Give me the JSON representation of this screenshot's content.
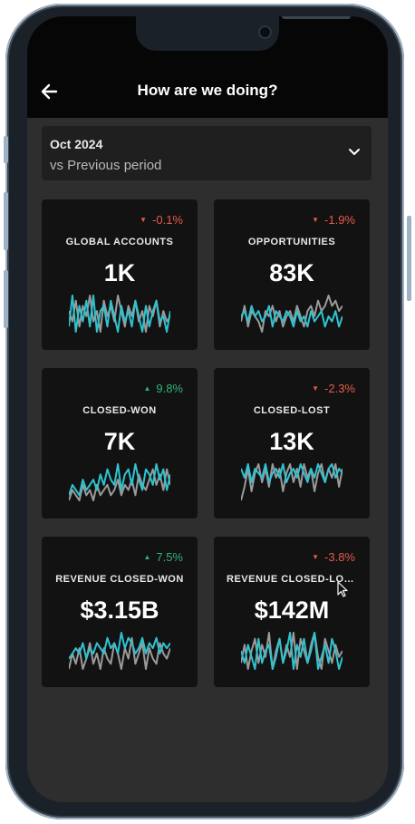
{
  "header": {
    "title": "How are we doing?",
    "back_icon": "arrow-left-icon"
  },
  "selector": {
    "period": "Oct 2024",
    "comparison": "vs Previous period",
    "icon": "chevron-down-icon"
  },
  "colors": {
    "primary_series": "#2fc3d0",
    "comparison_series": "#9a9a9a",
    "negative": "#e55b4d",
    "positive": "#2fb37a"
  },
  "cards": [
    {
      "label": "GLOBAL ACCOUNTS",
      "value": "1K",
      "delta": "-0.1%",
      "direction": "down",
      "trend_primary": [
        3,
        9,
        2,
        7,
        4,
        8,
        3,
        9,
        2,
        6,
        7,
        3,
        8,
        5,
        2,
        7,
        4,
        6,
        3,
        8,
        5,
        2,
        7,
        3,
        6,
        8,
        4,
        5,
        2,
        6
      ],
      "trend_compare": [
        6,
        4,
        8,
        3,
        7,
        5,
        9,
        4,
        6,
        2,
        8,
        5,
        7,
        4,
        9,
        6,
        3,
        7,
        5,
        8,
        4,
        6,
        2,
        7,
        5,
        8,
        3,
        6,
        4,
        5
      ]
    },
    {
      "label": "OPPORTUNITIES",
      "value": "83K",
      "delta": "-1.9%",
      "direction": "down",
      "trend_primary": [
        5,
        6,
        4,
        7,
        5,
        6,
        4,
        5,
        7,
        3,
        6,
        5,
        4,
        6,
        5,
        3,
        6,
        4,
        5,
        3,
        6,
        4,
        5,
        6,
        3,
        5,
        4,
        6,
        3,
        5
      ],
      "trend_compare": [
        4,
        7,
        3,
        6,
        5,
        4,
        2,
        6,
        5,
        7,
        4,
        6,
        3,
        5,
        6,
        4,
        7,
        5,
        3,
        6,
        7,
        5,
        8,
        6,
        7,
        9,
        7,
        8,
        6,
        7
      ]
    },
    {
      "label": "CLOSED-WON",
      "value": "7K",
      "delta": "9.8%",
      "direction": "up",
      "trend_primary": [
        3,
        5,
        4,
        3,
        6,
        4,
        5,
        6,
        4,
        7,
        5,
        8,
        6,
        5,
        9,
        4,
        7,
        8,
        5,
        9,
        6,
        4,
        8,
        7,
        5,
        9,
        6,
        8,
        4,
        7
      ],
      "trend_compare": [
        2,
        4,
        3,
        2,
        5,
        3,
        4,
        2,
        5,
        3,
        4,
        5,
        3,
        4,
        6,
        3,
        5,
        4,
        6,
        3,
        7,
        5,
        4,
        6,
        8,
        5,
        7,
        4,
        8,
        5
      ]
    },
    {
      "label": "CLOSED-LOST",
      "value": "13K",
      "delta": "-2.3%",
      "direction": "down",
      "trend_primary": [
        8,
        6,
        9,
        5,
        8,
        7,
        6,
        9,
        5,
        7,
        8,
        6,
        9,
        5,
        7,
        8,
        6,
        9,
        7,
        5,
        8,
        6,
        9,
        7,
        5,
        8,
        9,
        6,
        8,
        7
      ],
      "trend_compare": [
        1,
        4,
        8,
        3,
        7,
        9,
        5,
        8,
        4,
        9,
        6,
        8,
        3,
        7,
        9,
        5,
        8,
        4,
        9,
        6,
        8,
        3,
        7,
        9,
        5,
        8,
        6,
        9,
        4,
        8
      ]
    },
    {
      "label": "REVENUE CLOSED-WON",
      "value": "$3.15B",
      "delta": "7.5%",
      "direction": "up",
      "trend_primary": [
        4,
        5,
        6,
        5,
        7,
        4,
        6,
        5,
        7,
        6,
        5,
        8,
        6,
        7,
        5,
        9,
        6,
        8,
        7,
        5,
        6,
        8,
        5,
        7,
        6,
        8,
        5,
        7,
        6,
        7
      ],
      "trend_compare": [
        2,
        5,
        3,
        6,
        2,
        4,
        7,
        3,
        5,
        2,
        6,
        4,
        3,
        7,
        5,
        2,
        6,
        4,
        8,
        3,
        5,
        7,
        2,
        6,
        4,
        3,
        7,
        5,
        4,
        6
      ]
    },
    {
      "label": "REVENUE CLOSED-LOST",
      "value": "$142M",
      "delta": "-3.8%",
      "direction": "down",
      "trend_primary": [
        6,
        4,
        7,
        5,
        3,
        8,
        4,
        6,
        7,
        3,
        5,
        8,
        4,
        6,
        9,
        3,
        7,
        5,
        8,
        4,
        6,
        9,
        3,
        5,
        7,
        4,
        8,
        6,
        3,
        5
      ],
      "trend_compare": [
        4,
        7,
        3,
        6,
        8,
        4,
        7,
        5,
        9,
        3,
        6,
        8,
        4,
        7,
        5,
        9,
        3,
        8,
        6,
        4,
        7,
        9,
        5,
        3,
        8,
        6,
        4,
        7,
        5,
        6
      ]
    }
  ]
}
